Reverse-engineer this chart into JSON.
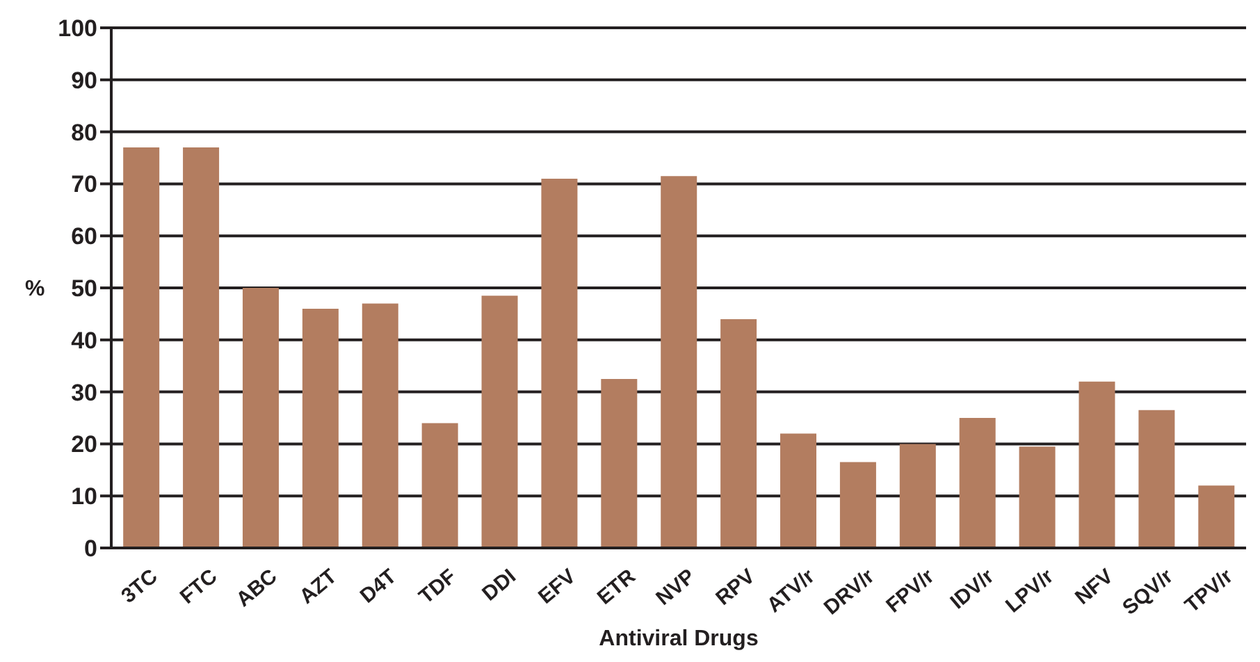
{
  "chart_data": {
    "type": "bar",
    "xlabel": "Antiviral Drugs",
    "ylabel": "%",
    "categories": [
      "3TC",
      "FTC",
      "ABC",
      "AZT",
      "D4T",
      "TDF",
      "DDI",
      "EFV",
      "ETR",
      "NVP",
      "RPV",
      "ATV/r",
      "DRV/r",
      "FPV/r",
      "IDV/r",
      "LPV/r",
      "NFV",
      "SQV/r",
      "TPV/r"
    ],
    "values": [
      77,
      77,
      50,
      46,
      47,
      24,
      48.5,
      71,
      32.5,
      71.5,
      44,
      22,
      16.5,
      20,
      25,
      19.5,
      32,
      26.5,
      12
    ],
    "color": "#b37d60",
    "ylim": [
      0,
      100
    ],
    "yticks": [
      0,
      10,
      20,
      30,
      40,
      50,
      60,
      70,
      80,
      90,
      100
    ],
    "grid": "y"
  }
}
